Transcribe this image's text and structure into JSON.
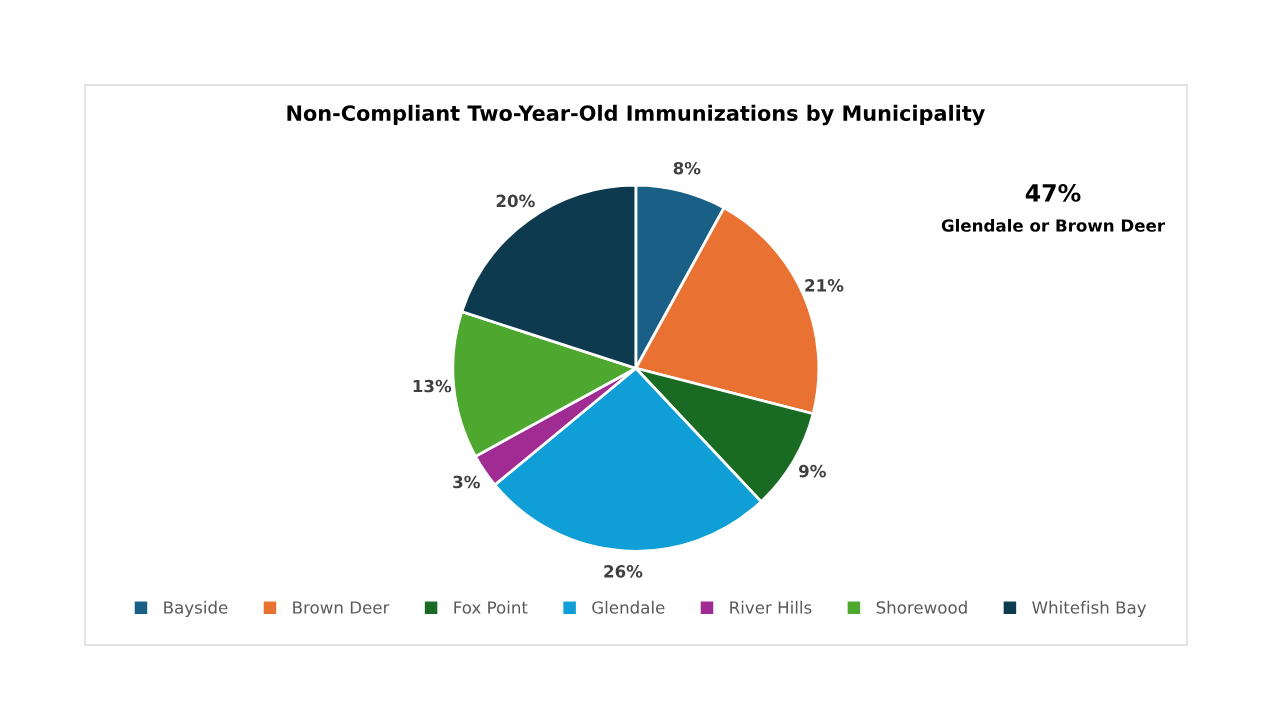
{
  "chart_data": {
    "type": "pie",
    "title": "Non-Compliant Two-Year-Old Immunizations by Municipality",
    "categories": [
      "Bayside",
      "Brown Deer",
      "Fox Point",
      "Glendale",
      "River Hills",
      "Shorewood",
      "Whitefish Bay"
    ],
    "values": [
      8,
      21,
      9,
      26,
      3,
      13,
      20
    ],
    "colors": [
      "#1a5f85",
      "#e97132",
      "#196b24",
      "#0f9ed5",
      "#a02b93",
      "#4ea72e",
      "#0e3a50"
    ],
    "value_labels": [
      "8%",
      "21%",
      "9%",
      "26%",
      "3%",
      "13%",
      "20%"
    ],
    "annotations": [
      "47%",
      "Glendale or Brown Deer"
    ],
    "legend": "bottom"
  }
}
